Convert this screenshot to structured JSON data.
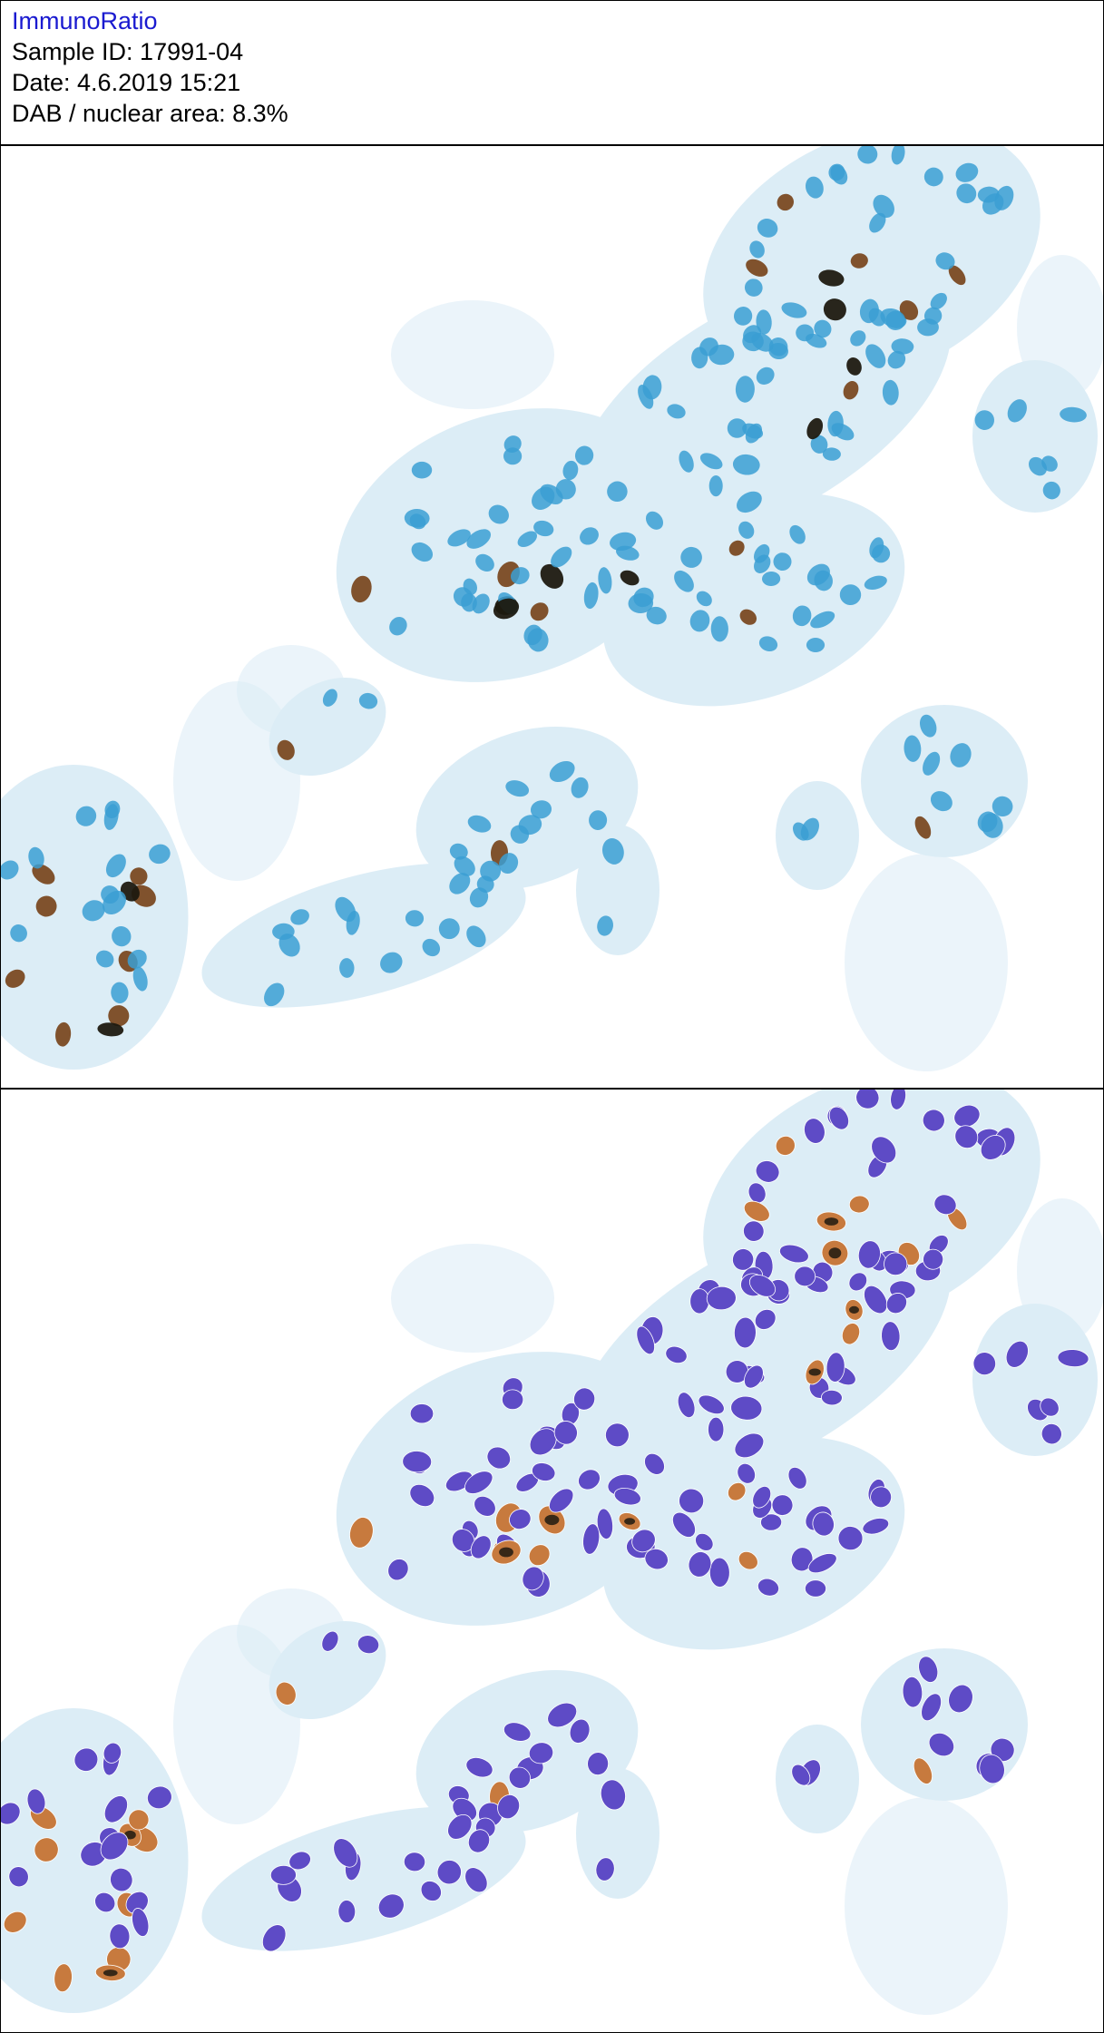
{
  "header": {
    "app_title": "ImmunoRatio",
    "sample_id": "Sample ID: 17991-04",
    "date": "Date: 4.6.2019 15:21",
    "dab_nuclear_area": "DAB / nuclear area: 8.3%"
  },
  "colors": {
    "title_blue": "#1a1ad0",
    "hematoxylin_blue": "#3b9fd3",
    "tissue_light_blue": "#9ccbe6",
    "dab_brown": "#7a4a22",
    "dab_dark": "#1e1a10",
    "mask_purple": "#5e4bc6",
    "mask_orange": "#c77a3e"
  },
  "images": {
    "top": "original-ihc-micrograph",
    "bottom": "segmented-nuclei-overlay"
  }
}
